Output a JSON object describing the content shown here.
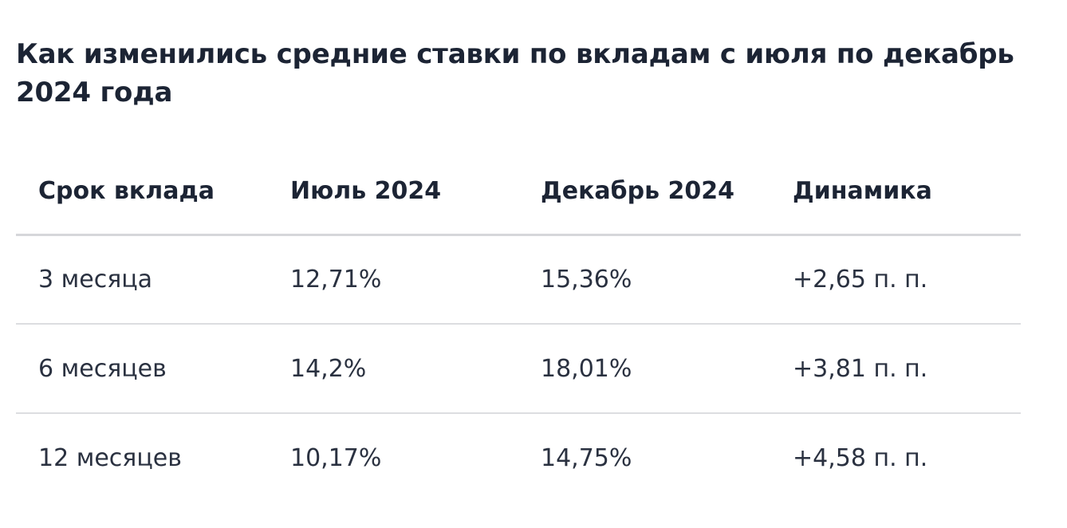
{
  "title": "Как изменились средние ставки по вкладам с июля по декабрь 2024 года",
  "table": {
    "headers": [
      "Срок вклада",
      "Июль 2024",
      "Декабрь 2024",
      "Динамика"
    ],
    "rows": [
      [
        "3 месяца",
        "12,71%",
        "15,36%",
        "+2,65 п. п."
      ],
      [
        "6 месяцев",
        "14,2%",
        "18,01%",
        "+3,81 п. п."
      ],
      [
        "12 месяцев",
        "10,17%",
        "14,75%",
        "+4,58 п. п."
      ]
    ]
  },
  "colors": {
    "text": "#1c2434",
    "divider": "#d6d7da",
    "background": "#ffffff"
  }
}
